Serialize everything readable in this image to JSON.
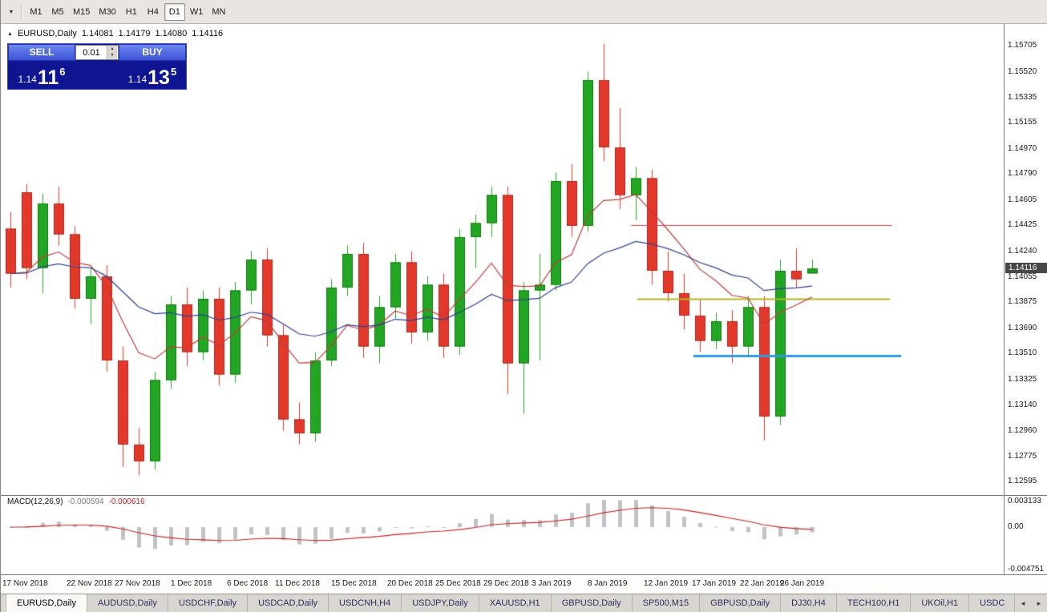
{
  "toolbar": {
    "timeframes": [
      "M1",
      "M5",
      "M15",
      "M30",
      "H1",
      "H4",
      "D1",
      "W1",
      "MN"
    ],
    "active_timeframe": "D1"
  },
  "icons": {
    "chevron_down": "▾",
    "triangle_up": "▴",
    "triangle_down": "▾",
    "arrow_left": "◂",
    "arrow_right": "▸",
    "symbol_marker": "▲"
  },
  "chart": {
    "title_symbol": "EURUSD,Daily",
    "open": "1.14081",
    "high": "1.14179",
    "low": "1.14080",
    "close": "1.14116",
    "current_price": "1.14116",
    "price_axis_labels": [
      "1.15705",
      "1.15520",
      "1.15335",
      "1.15155",
      "1.14970",
      "1.14790",
      "1.14605",
      "1.14425",
      "1.14240",
      "1.14055",
      "1.13875",
      "1.13690",
      "1.13510",
      "1.13325",
      "1.13140",
      "1.12960",
      "1.12775",
      "1.12595"
    ],
    "date_axis_labels": [
      {
        "text": "17 Nov 2018",
        "i": 0
      },
      {
        "text": "22 Nov 2018",
        "i": 4
      },
      {
        "text": "27 Nov 2018",
        "i": 7
      },
      {
        "text": "1 Dec 2018",
        "i": 10.5
      },
      {
        "text": "6 Dec 2018",
        "i": 14
      },
      {
        "text": "11 Dec 2018",
        "i": 17
      },
      {
        "text": "15 Dec 2018",
        "i": 20.5
      },
      {
        "text": "20 Dec 2018",
        "i": 24
      },
      {
        "text": "25 Dec 2018",
        "i": 27
      },
      {
        "text": "29 Dec 2018",
        "i": 30
      },
      {
        "text": "3 Jan 2019",
        "i": 33
      },
      {
        "text": "8 Jan 2019",
        "i": 36.5
      },
      {
        "text": "12 Jan 2019",
        "i": 40
      },
      {
        "text": "17 Jan 2019",
        "i": 43
      },
      {
        "text": "22 Jan 2019",
        "i": 46
      },
      {
        "text": "26 Jan 2019",
        "i": 48.5
      }
    ]
  },
  "trade_panel": {
    "sell_label": "SELL",
    "buy_label": "BUY",
    "lot_size": "0.01",
    "sell_price_prefix": "1.14",
    "sell_price_big": "11",
    "sell_price_sup": "6",
    "buy_price_prefix": "1.14",
    "buy_price_big": "13",
    "buy_price_sup": "5"
  },
  "macd": {
    "label": "MACD(12,26,9)",
    "value_main": "-0.000594",
    "value_signal": "-0.000616",
    "axis_labels": [
      {
        "text": "0.003133",
        "value": 0.003133
      },
      {
        "text": "0.00",
        "value": 0
      },
      {
        "text": "-0.004751",
        "value": -0.004751
      }
    ]
  },
  "tabs": {
    "items": [
      "EURUSD,Daily",
      "AUDUSD,Daily",
      "USDCHF,Daily",
      "USDCAD,Daily",
      "USDCNH,H4",
      "USDJPY,Daily",
      "XAUUSD,H1",
      "GBPUSD,Daily",
      "SP500,M15",
      "GBPUSD,Daily",
      "DJ30,H4",
      "TECH100,H1",
      "UKOil,H1",
      "USDC"
    ],
    "active": "EURUSD,Daily"
  },
  "colors": {
    "bull": "#23a623",
    "bull_border": "#0c7a0c",
    "bear": "#e4392a",
    "bear_border": "#a8291d",
    "background": "#ffffff",
    "panel_blue": "#0f1590"
  },
  "chart_data": {
    "type": "candlestick",
    "title": "EURUSD,Daily",
    "y_range": {
      "min": 1.125,
      "max": 1.1586
    },
    "candles": [
      [
        "2018.11.16",
        1.144,
        1.1452,
        1.1398,
        1.1408
      ],
      [
        "2018.11.19",
        1.1466,
        1.1472,
        1.1404,
        1.1412
      ],
      [
        "2018.11.20",
        1.1412,
        1.1465,
        1.1394,
        1.1458
      ],
      [
        "2018.11.21",
        1.1458,
        1.147,
        1.1428,
        1.1436
      ],
      [
        "2018.11.22",
        1.1436,
        1.1442,
        1.1383,
        1.139
      ],
      [
        "2018.11.23",
        1.139,
        1.1412,
        1.1372,
        1.1406
      ],
      [
        "2018.11.26",
        1.1406,
        1.1414,
        1.1338,
        1.1346
      ],
      [
        "2018.11.27",
        1.1346,
        1.1356,
        1.127,
        1.1286
      ],
      [
        "2018.11.28",
        1.1286,
        1.1298,
        1.1264,
        1.1274
      ],
      [
        "2018.11.29",
        1.1274,
        1.1338,
        1.1268,
        1.1332
      ],
      [
        "2018.11.30",
        1.1332,
        1.1392,
        1.1326,
        1.1386
      ],
      [
        "2018.12.03",
        1.1386,
        1.1398,
        1.1342,
        1.1352
      ],
      [
        "2018.12.04",
        1.1352,
        1.1396,
        1.1346,
        1.139
      ],
      [
        "2018.12.05",
        1.139,
        1.1398,
        1.1328,
        1.1336
      ],
      [
        "2018.12.06",
        1.1336,
        1.1402,
        1.133,
        1.1396
      ],
      [
        "2018.12.07",
        1.1396,
        1.1424,
        1.1386,
        1.1418
      ],
      [
        "2018.12.10",
        1.1418,
        1.1426,
        1.1356,
        1.1364
      ],
      [
        "2018.12.11",
        1.1364,
        1.1372,
        1.1296,
        1.1304
      ],
      [
        "2018.12.12",
        1.1304,
        1.1316,
        1.1286,
        1.1294
      ],
      [
        "2018.12.13",
        1.1294,
        1.1352,
        1.1288,
        1.1346
      ],
      [
        "2018.12.14",
        1.1346,
        1.1404,
        1.1342,
        1.1398
      ],
      [
        "2018.12.17",
        1.1398,
        1.1428,
        1.1392,
        1.1422
      ],
      [
        "2018.12.18",
        1.1422,
        1.143,
        1.1348,
        1.1356
      ],
      [
        "2018.12.19",
        1.1356,
        1.1392,
        1.1344,
        1.1384
      ],
      [
        "2018.12.20",
        1.1384,
        1.1422,
        1.1376,
        1.1416
      ],
      [
        "2018.12.21",
        1.1416,
        1.1424,
        1.1358,
        1.1366
      ],
      [
        "2018.12.24",
        1.1366,
        1.1406,
        1.136,
        1.14
      ],
      [
        "2018.12.26",
        1.14,
        1.1408,
        1.1348,
        1.1356
      ],
      [
        "2018.12.27",
        1.1356,
        1.144,
        1.135,
        1.1434
      ],
      [
        "2018.12.28",
        1.1434,
        1.145,
        1.1412,
        1.1444
      ],
      [
        "2018.12.31",
        1.1444,
        1.147,
        1.1434,
        1.1464
      ],
      [
        "2019.01.02",
        1.1464,
        1.147,
        1.1322,
        1.1344
      ],
      [
        "2019.01.03",
        1.1344,
        1.1402,
        1.1308,
        1.1396
      ],
      [
        "2019.01.04",
        1.1396,
        1.1422,
        1.1346,
        1.14
      ],
      [
        "2019.01.07",
        1.14,
        1.148,
        1.1396,
        1.1474
      ],
      [
        "2019.01.08",
        1.1474,
        1.1486,
        1.1434,
        1.1442
      ],
      [
        "2019.01.09",
        1.1442,
        1.1552,
        1.1438,
        1.1546
      ],
      [
        "2019.01.10",
        1.1546,
        1.1572,
        1.1488,
        1.1498
      ],
      [
        "2019.01.11",
        1.1498,
        1.1526,
        1.1454,
        1.1464
      ],
      [
        "2019.01.14",
        1.1464,
        1.1484,
        1.1446,
        1.1476
      ],
      [
        "2019.01.15",
        1.1476,
        1.1482,
        1.14,
        1.141
      ],
      [
        "2019.01.16",
        1.141,
        1.1424,
        1.1388,
        1.1394
      ],
      [
        "2019.01.17",
        1.1394,
        1.1408,
        1.1368,
        1.1378
      ],
      [
        "2019.01.18",
        1.1378,
        1.139,
        1.1352,
        1.136
      ],
      [
        "2019.01.21",
        1.136,
        1.138,
        1.1354,
        1.1374
      ],
      [
        "2019.01.22",
        1.1374,
        1.1382,
        1.1344,
        1.1356
      ],
      [
        "2019.01.23",
        1.1356,
        1.1392,
        1.135,
        1.1384
      ],
      [
        "2019.01.24",
        1.1384,
        1.1392,
        1.1289,
        1.1306
      ],
      [
        "2019.01.25",
        1.1306,
        1.1418,
        1.13,
        1.141
      ],
      [
        "2019.01.28",
        1.141,
        1.1426,
        1.1398,
        1.1404
      ],
      [
        "2019.01.29",
        1.14081,
        1.14179,
        1.1408,
        1.14116
      ]
    ],
    "moving_averages": [
      {
        "name": "fast-ma",
        "method": "ema",
        "period": 8,
        "color": "#c23b3b"
      },
      {
        "name": "slow-ma",
        "method": "ema",
        "period": 21,
        "color": "#2c3f94"
      }
    ],
    "horizontal_lines": [
      {
        "price": 1.14425,
        "color": "#e03a3a",
        "x1_frac": 0.628,
        "x2_frac": 0.888,
        "width": 1
      },
      {
        "price": 1.139,
        "color": "#b5b526",
        "x1_frac": 0.634,
        "x2_frac": 0.886,
        "width": 2
      },
      {
        "price": 1.13495,
        "color": "#2f9ce3",
        "x1_frac": 0.69,
        "x2_frac": 0.897,
        "width": 3
      }
    ],
    "macd": {
      "fast": 12,
      "slow": 26,
      "signal_period": 9,
      "histogram_color": "#c2c2c2",
      "signal_color": "#cc2222",
      "range": {
        "min": -0.004751,
        "max": 0.003133
      }
    }
  }
}
